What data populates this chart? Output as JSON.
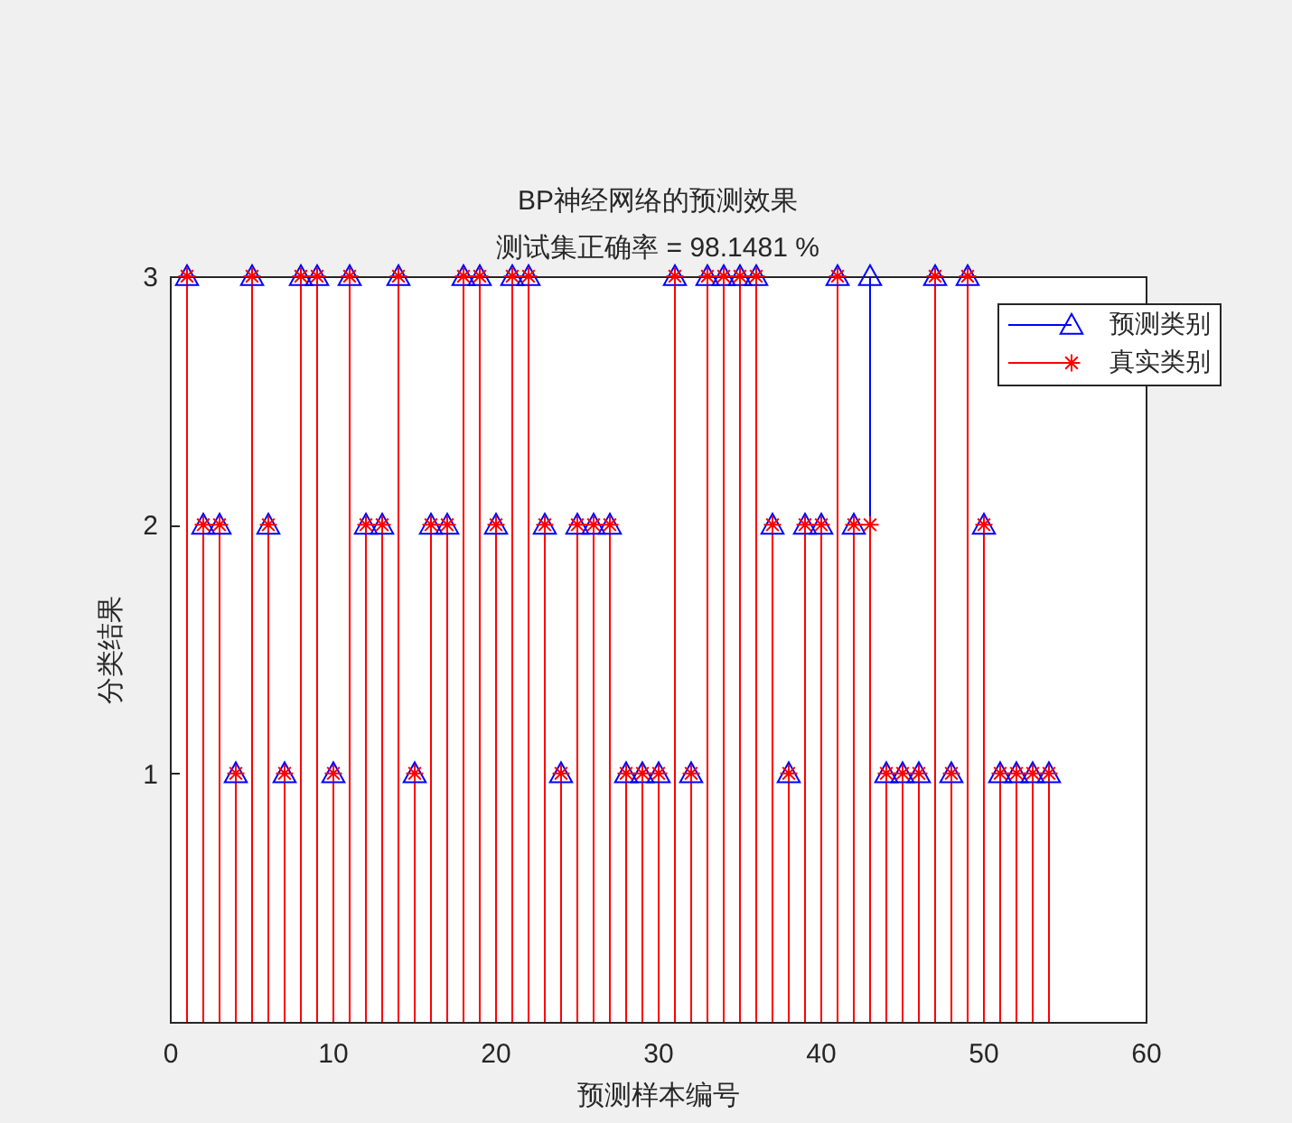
{
  "chart_data": {
    "type": "lollipop",
    "title": "BP神经网络的预测效果",
    "subtitle": "测试集正确率 = 98.1481 %",
    "xlabel": "预测样本编号",
    "ylabel": "分类结果",
    "x": [
      1,
      2,
      3,
      4,
      5,
      6,
      7,
      8,
      9,
      10,
      11,
      12,
      13,
      14,
      15,
      16,
      17,
      18,
      19,
      20,
      21,
      22,
      23,
      24,
      25,
      26,
      27,
      28,
      29,
      30,
      31,
      32,
      33,
      34,
      35,
      36,
      37,
      38,
      39,
      40,
      41,
      42,
      43,
      44,
      45,
      46,
      47,
      48,
      49,
      50,
      51,
      52,
      53,
      54
    ],
    "series": [
      {
        "name": "预测类别",
        "color": "#0000ff",
        "marker": "triangle",
        "values": [
          3,
          2,
          2,
          1,
          3,
          2,
          1,
          3,
          3,
          1,
          3,
          2,
          2,
          3,
          1,
          2,
          2,
          3,
          3,
          2,
          3,
          3,
          2,
          1,
          2,
          2,
          2,
          1,
          1,
          1,
          3,
          1,
          3,
          3,
          3,
          3,
          2,
          1,
          2,
          2,
          3,
          2,
          3,
          1,
          1,
          1,
          3,
          1,
          3,
          2,
          1,
          1,
          1,
          1
        ]
      },
      {
        "name": "真实类别",
        "color": "#ff0000",
        "marker": "cross",
        "values": [
          3,
          2,
          2,
          1,
          3,
          2,
          1,
          3,
          3,
          1,
          3,
          2,
          2,
          3,
          1,
          2,
          2,
          3,
          3,
          2,
          3,
          3,
          2,
          1,
          2,
          2,
          2,
          1,
          1,
          1,
          3,
          1,
          3,
          3,
          3,
          3,
          2,
          1,
          2,
          2,
          3,
          2,
          2,
          1,
          1,
          1,
          3,
          1,
          3,
          2,
          1,
          1,
          1,
          1
        ]
      }
    ],
    "xlim": [
      0,
      60
    ],
    "xticks": [
      0,
      10,
      20,
      30,
      40,
      50,
      60
    ],
    "ylim": [
      0,
      3
    ],
    "yticks": [
      1,
      2,
      3
    ],
    "legend": "top right"
  }
}
